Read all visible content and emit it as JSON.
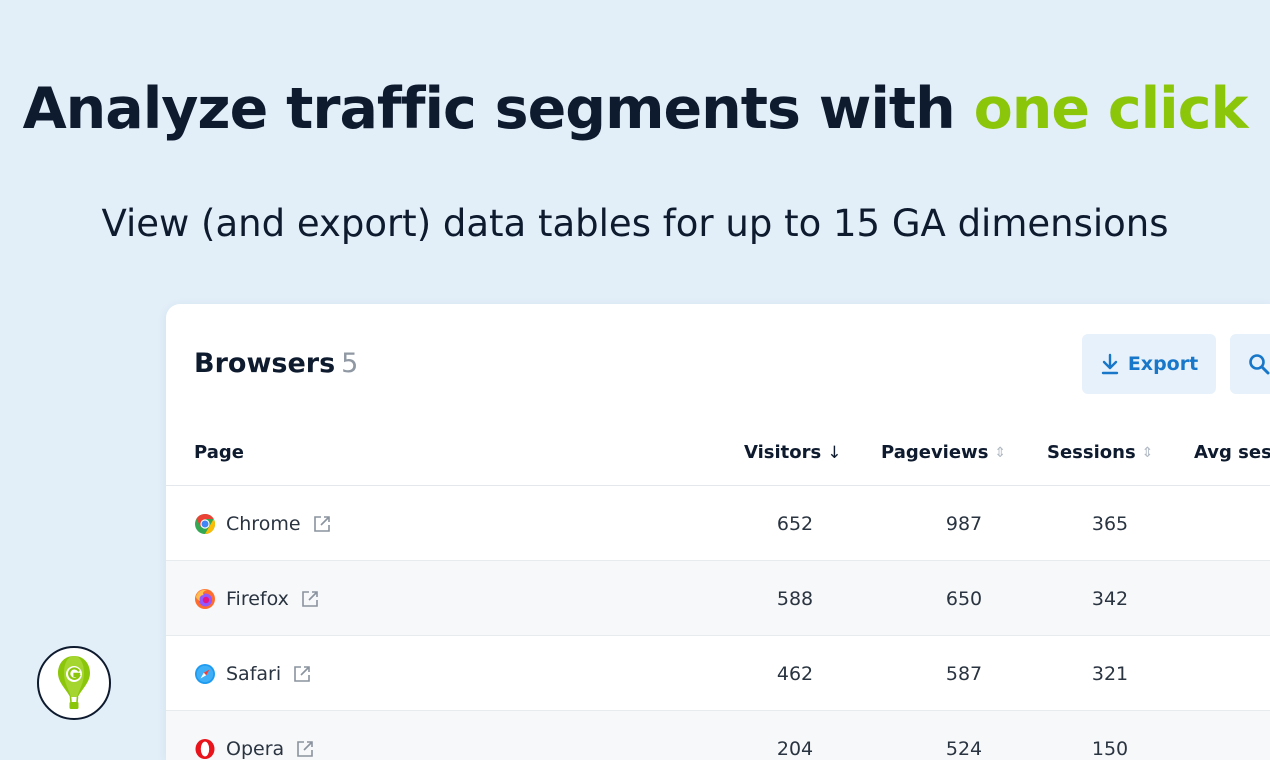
{
  "hero": {
    "headline_main": "Analyze traffic segments with",
    "headline_accent": "one click",
    "subline": "View (and export) data tables for up to 15 GA dimensions"
  },
  "card": {
    "title": "Browsers",
    "count": "5",
    "export_label": "Export"
  },
  "table": {
    "columns": [
      "Page",
      "Visitors",
      "Pageviews",
      "Sessions",
      "Avg sess"
    ],
    "rows": [
      {
        "name": "Chrome",
        "icon": "chrome-icon",
        "visitors": "652",
        "pageviews": "987",
        "sessions": "365"
      },
      {
        "name": "Firefox",
        "icon": "firefox-icon",
        "visitors": "588",
        "pageviews": "650",
        "sessions": "342"
      },
      {
        "name": "Safari",
        "icon": "safari-icon",
        "visitors": "462",
        "pageviews": "587",
        "sessions": "321"
      },
      {
        "name": "Opera",
        "icon": "opera-icon",
        "visitors": "204",
        "pageviews": "524",
        "sessions": "150"
      }
    ]
  },
  "colors": {
    "background": "#e2eff9",
    "accent_green": "#8cc60b",
    "primary_blue": "#1877c9",
    "text_dark": "#0e1a2e"
  }
}
